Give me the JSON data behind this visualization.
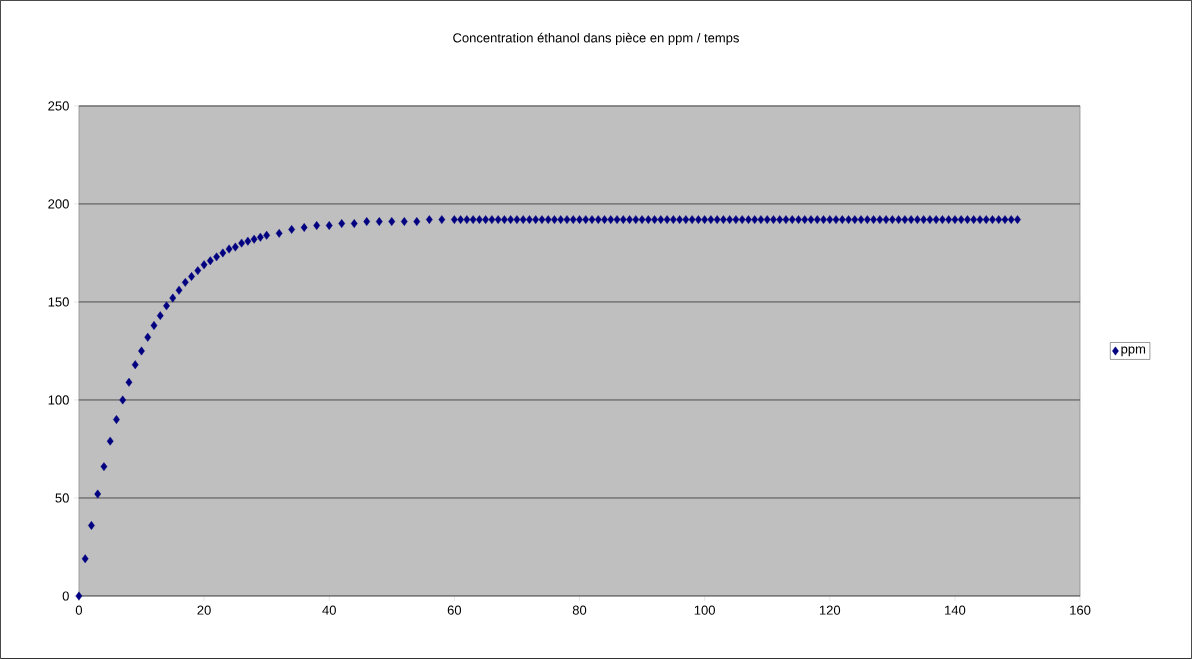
{
  "chart_data": {
    "type": "scatter",
    "title": "Concentration éthanol dans pièce en ppm / temps",
    "x": [
      0,
      1,
      2,
      3,
      4,
      5,
      6,
      7,
      8,
      9,
      10,
      11,
      12,
      13,
      14,
      15,
      16,
      17,
      18,
      19,
      20,
      21,
      22,
      23,
      24,
      25,
      26,
      27,
      28,
      29,
      30,
      32,
      34,
      36,
      38,
      40,
      42,
      44,
      46,
      48,
      50,
      52,
      54,
      56,
      58,
      60,
      61,
      62,
      63,
      64,
      65,
      66,
      67,
      68,
      69,
      70,
      71,
      72,
      73,
      74,
      75,
      76,
      77,
      78,
      79,
      80,
      81,
      82,
      83,
      84,
      85,
      86,
      87,
      88,
      89,
      90,
      91,
      92,
      93,
      94,
      95,
      96,
      97,
      98,
      99,
      100,
      101,
      102,
      103,
      104,
      105,
      106,
      107,
      108,
      109,
      110,
      111,
      112,
      113,
      114,
      115,
      116,
      117,
      118,
      119,
      120,
      121,
      122,
      123,
      124,
      125,
      126,
      127,
      128,
      129,
      130,
      131,
      132,
      133,
      134,
      135,
      136,
      137,
      138,
      139,
      140,
      141,
      142,
      143,
      144,
      145,
      146,
      147,
      148,
      149,
      150
    ],
    "series": [
      {
        "name": "ppm",
        "color": "#000080",
        "values": [
          0,
          19,
          36,
          52,
          66,
          79,
          90,
          100,
          109,
          118,
          125,
          132,
          138,
          143,
          148,
          152,
          156,
          160,
          163,
          166,
          169,
          171,
          173,
          175,
          177,
          178,
          180,
          181,
          182,
          183,
          184,
          185,
          187,
          188,
          189,
          189,
          190,
          190,
          191,
          191,
          191,
          191,
          191,
          192,
          192,
          192,
          192,
          192,
          192,
          192,
          192,
          192,
          192,
          192,
          192,
          192,
          192,
          192,
          192,
          192,
          192,
          192,
          192,
          192,
          192,
          192,
          192,
          192,
          192,
          192,
          192,
          192,
          192,
          192,
          192,
          192,
          192,
          192,
          192,
          192,
          192,
          192,
          192,
          192,
          192,
          192,
          192,
          192,
          192,
          192,
          192,
          192,
          192,
          192,
          192,
          192,
          192,
          192,
          192,
          192,
          192,
          192,
          192,
          192,
          192,
          192,
          192,
          192,
          192,
          192,
          192,
          192,
          192,
          192,
          192,
          192,
          192,
          192,
          192,
          192,
          192,
          192,
          192,
          192,
          192,
          192,
          192,
          192,
          192,
          192,
          192,
          192,
          192,
          192,
          192,
          192
        ]
      }
    ],
    "xlim": [
      0,
      160
    ],
    "xticks": [
      0,
      20,
      40,
      60,
      80,
      100,
      120,
      140,
      160
    ],
    "ylim": [
      0,
      250
    ],
    "yticks": [
      0,
      50,
      100,
      150,
      200,
      250
    ],
    "grid": "y",
    "legend": "right",
    "marker": "diamond"
  }
}
